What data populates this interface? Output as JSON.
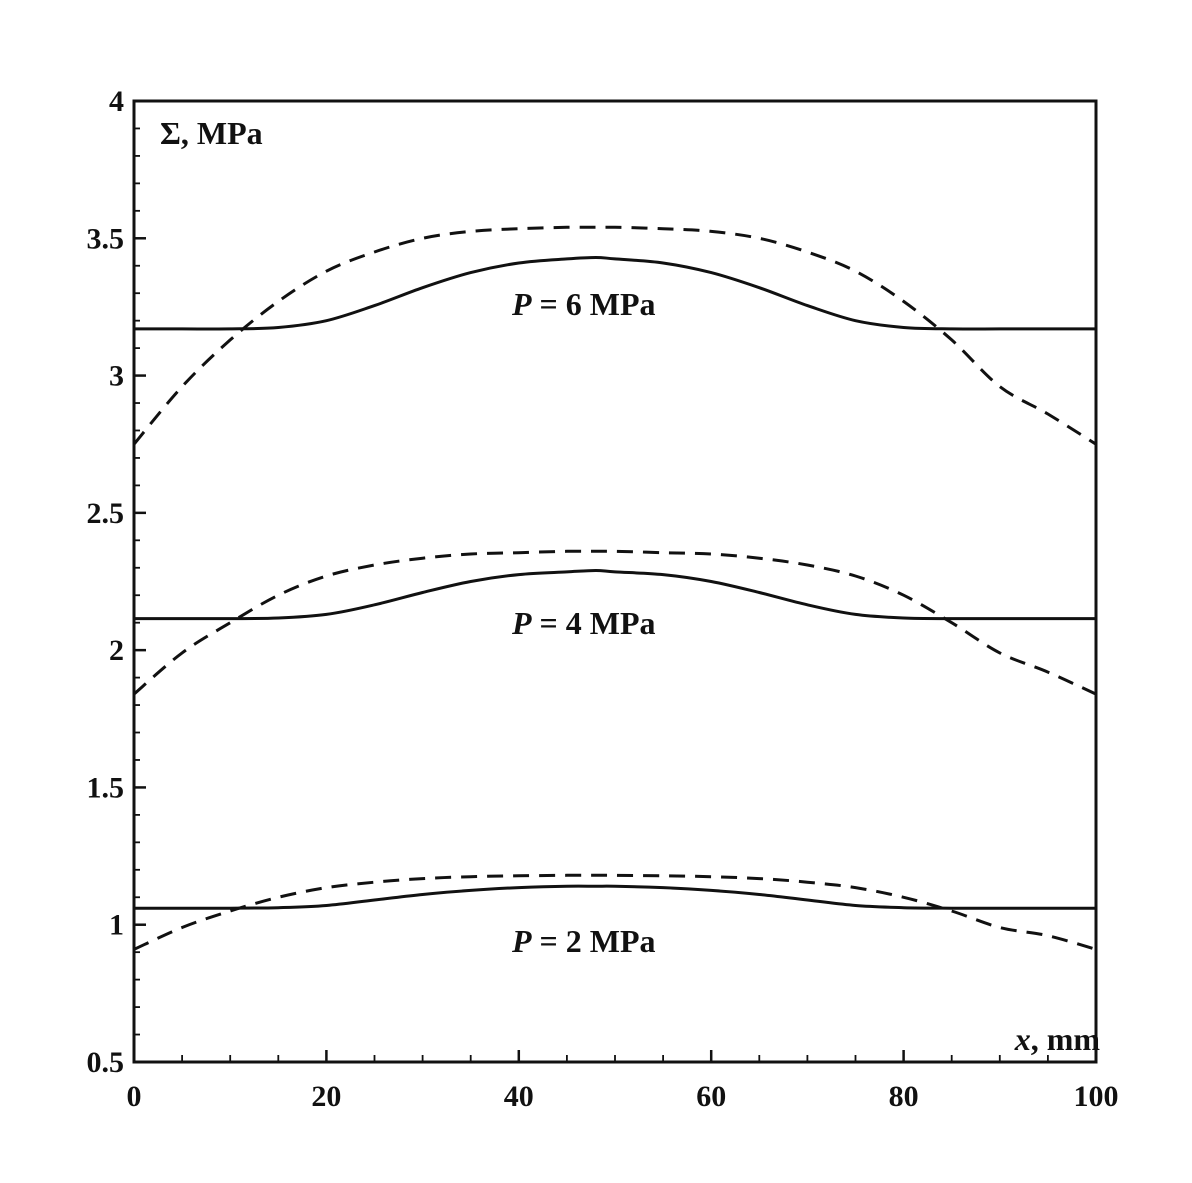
{
  "chart_data": {
    "type": "line",
    "title": "",
    "xlabel": {
      "symbol": "x",
      "unit": ", mm"
    },
    "ylabel": {
      "symbol": "Σ",
      "unit": ", MPa"
    },
    "xlim": [
      0,
      100
    ],
    "ylim": [
      0.5,
      4
    ],
    "x_ticks": [
      0,
      20,
      40,
      60,
      80,
      100
    ],
    "x_tick_labels": [
      "0",
      "20",
      "40",
      "60",
      "80",
      "100"
    ],
    "y_ticks": [
      0.5,
      1,
      1.5,
      2,
      2.5,
      3,
      3.5,
      4
    ],
    "y_tick_labels": [
      "0.5",
      "1",
      "1.5",
      "2",
      "2.5",
      "3",
      "3.5",
      "4"
    ],
    "grid": false,
    "legend": "none",
    "annotations": [
      {
        "symbol": "P",
        "text": " = 6 MPa"
      },
      {
        "symbol": "P",
        "text": " = 4 MPa"
      },
      {
        "symbol": "P",
        "text": " = 2 MPa"
      }
    ],
    "x": [
      0,
      5,
      10,
      15,
      20,
      25,
      30,
      35,
      40,
      45,
      48,
      50,
      55,
      60,
      65,
      70,
      75,
      80,
      85,
      90,
      95,
      100
    ],
    "series": [
      {
        "style": "solid",
        "values": [
          3.17,
          3.17,
          3.17,
          3.175,
          3.2,
          3.255,
          3.32,
          3.375,
          3.41,
          3.425,
          3.43,
          3.425,
          3.41,
          3.375,
          3.32,
          3.255,
          3.2,
          3.175,
          3.17,
          3.17,
          3.17,
          3.17
        ]
      },
      {
        "style": "dashed",
        "values": [
          2.75,
          2.96,
          3.13,
          3.27,
          3.38,
          3.45,
          3.5,
          3.525,
          3.535,
          3.54,
          3.54,
          3.54,
          3.535,
          3.525,
          3.5,
          3.45,
          3.38,
          3.27,
          3.13,
          2.96,
          2.86,
          2.75
        ]
      },
      {
        "style": "solid",
        "values": [
          2.115,
          2.115,
          2.115,
          2.117,
          2.13,
          2.165,
          2.21,
          2.25,
          2.275,
          2.285,
          2.29,
          2.285,
          2.275,
          2.25,
          2.21,
          2.165,
          2.13,
          2.117,
          2.115,
          2.115,
          2.115,
          2.115
        ]
      },
      {
        "style": "dashed",
        "values": [
          1.84,
          1.99,
          2.1,
          2.2,
          2.27,
          2.31,
          2.335,
          2.35,
          2.355,
          2.36,
          2.36,
          2.36,
          2.355,
          2.35,
          2.335,
          2.31,
          2.27,
          2.2,
          2.1,
          1.99,
          1.92,
          1.84
        ]
      },
      {
        "style": "solid",
        "values": [
          1.06,
          1.06,
          1.06,
          1.062,
          1.07,
          1.09,
          1.11,
          1.125,
          1.135,
          1.14,
          1.14,
          1.14,
          1.135,
          1.125,
          1.11,
          1.09,
          1.07,
          1.062,
          1.06,
          1.06,
          1.06,
          1.06
        ]
      },
      {
        "style": "dashed",
        "values": [
          0.91,
          0.99,
          1.05,
          1.1,
          1.135,
          1.155,
          1.168,
          1.175,
          1.178,
          1.18,
          1.18,
          1.18,
          1.178,
          1.175,
          1.168,
          1.155,
          1.135,
          1.1,
          1.05,
          0.99,
          0.96,
          0.91
        ]
      }
    ]
  }
}
